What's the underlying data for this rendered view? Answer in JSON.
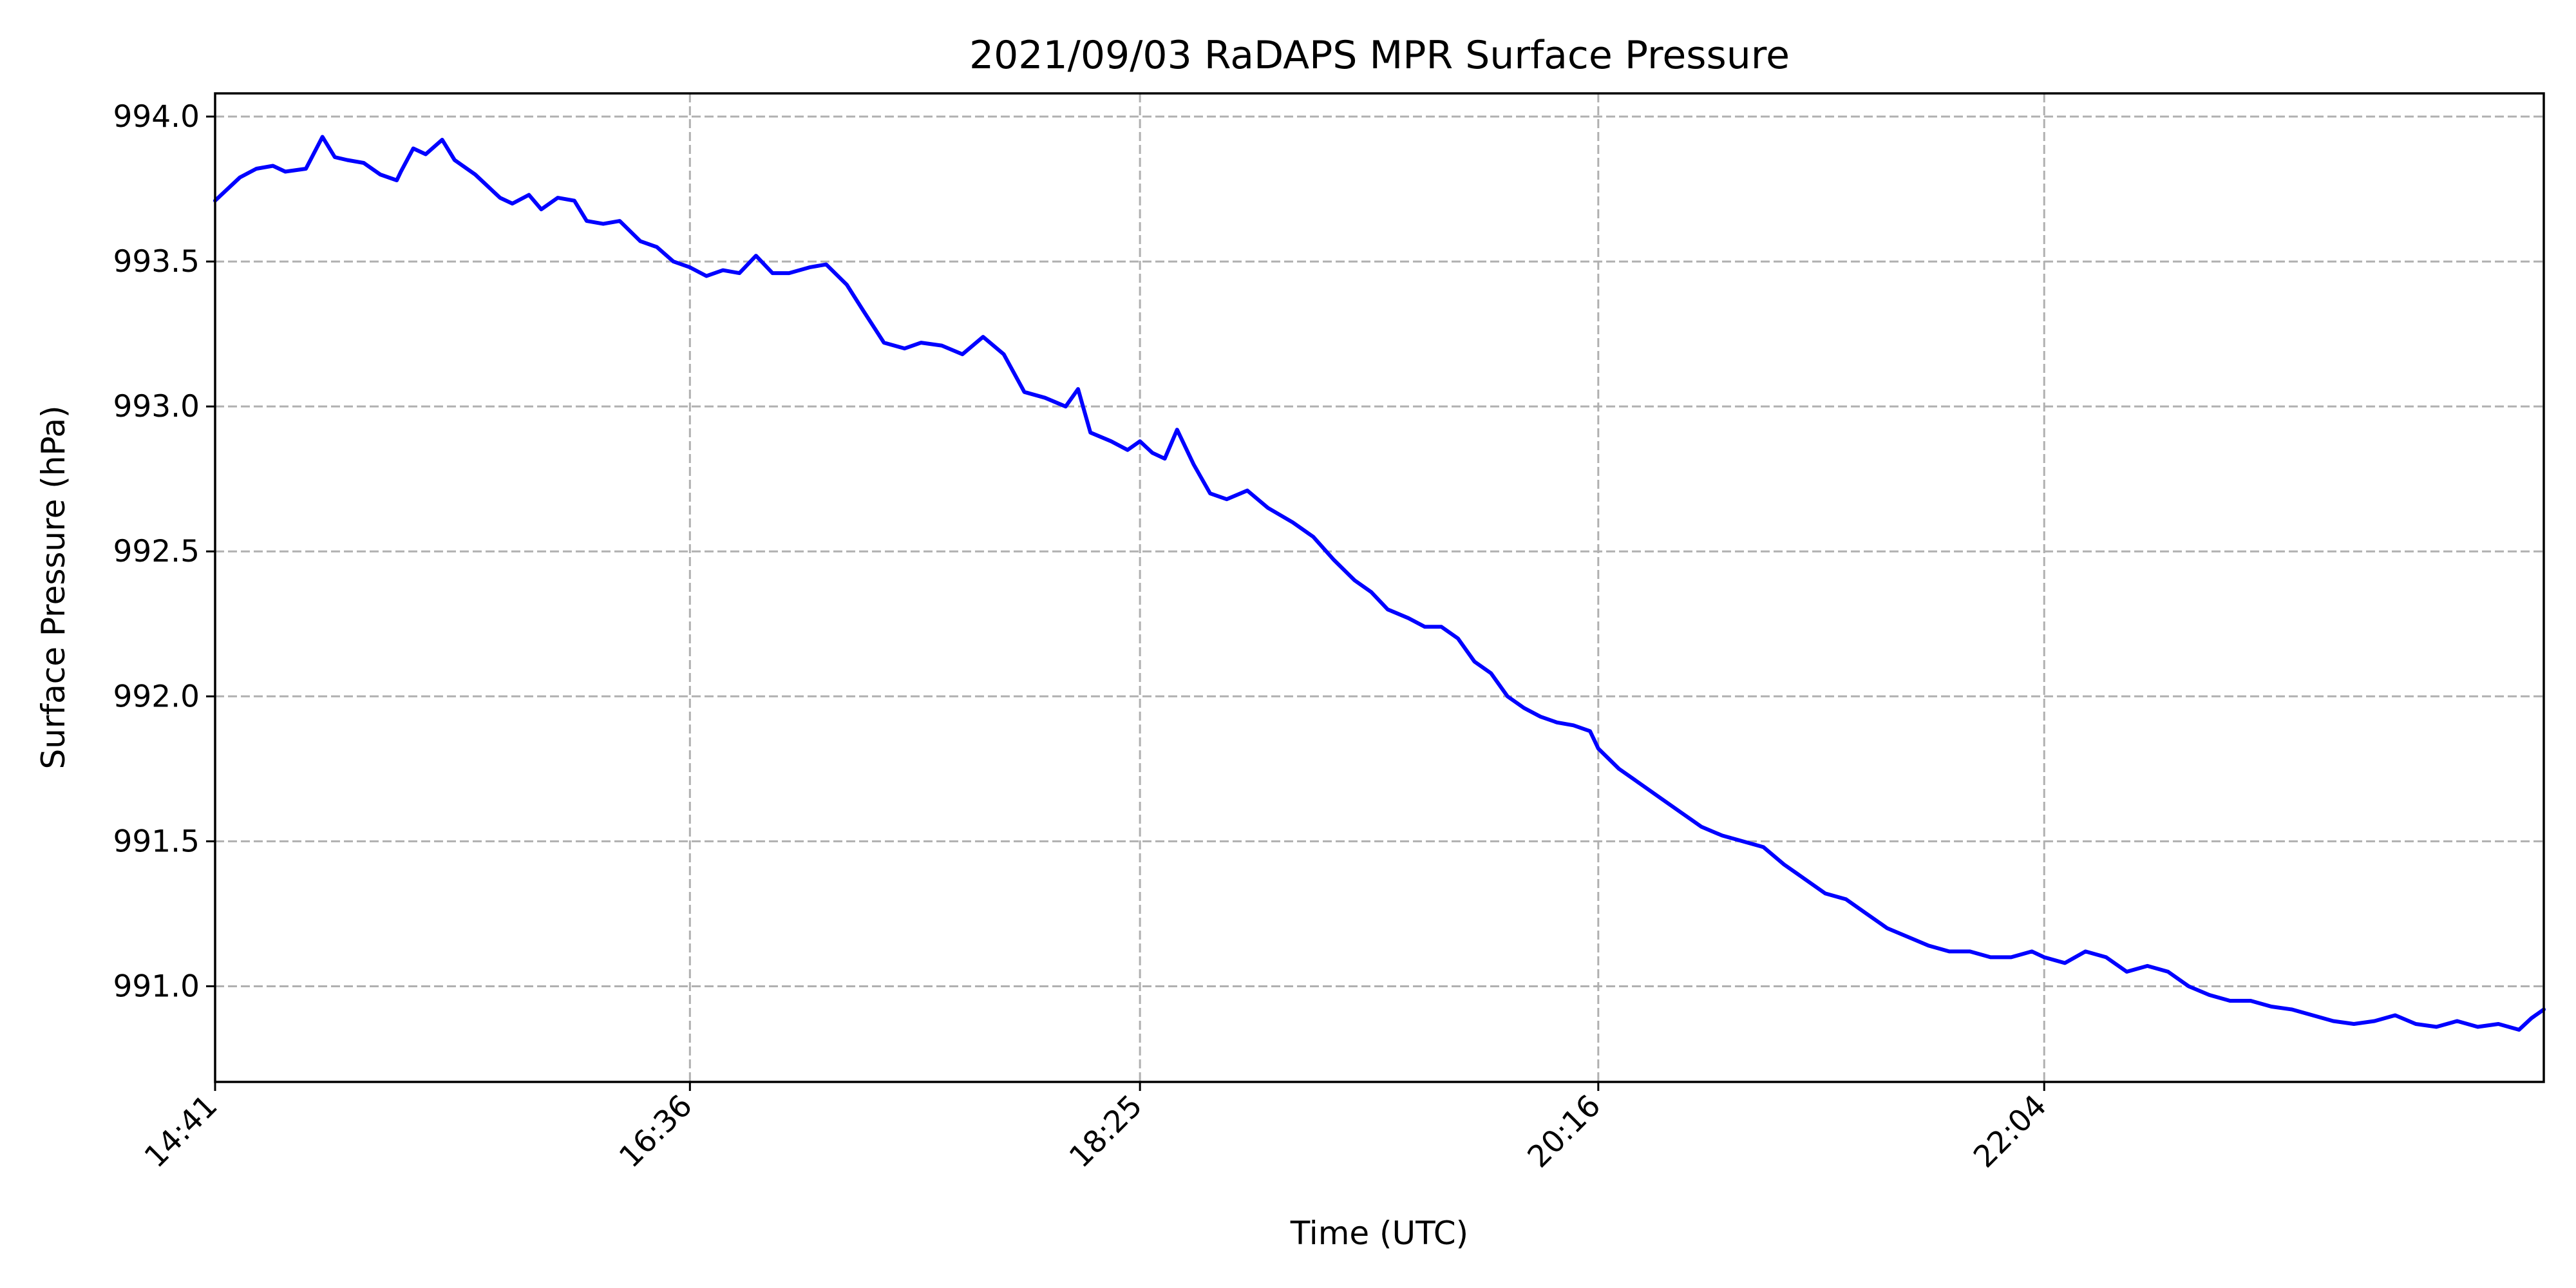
{
  "chart_data": {
    "type": "line",
    "title": "2021/09/03 RaDAPS MPR Surface Pressure",
    "xlabel": "Time (UTC)",
    "ylabel": "Surface Pressure (hPa)",
    "xlim": [
      "14:41",
      "24:05"
    ],
    "ylim": [
      990.67,
      994.08
    ],
    "x_ticks": [
      "14:41",
      "16:36",
      "18:25",
      "20:16",
      "22:04"
    ],
    "y_ticks": [
      991.0,
      991.5,
      992.0,
      992.5,
      993.0,
      993.5,
      994.0
    ],
    "y_tick_labels": [
      "991.0",
      "991.5",
      "992.0",
      "992.5",
      "993.0",
      "993.5",
      "994.0"
    ],
    "grid": true,
    "series": [
      {
        "color": "#0000ff",
        "x": [
          "14:41",
          "14:47",
          "14:51",
          "14:55",
          "14:58",
          "15:03",
          "15:07",
          "15:10",
          "15:13",
          "15:17",
          "15:21",
          "15:25",
          "15:26",
          "15:29",
          "15:32",
          "15:36",
          "15:39",
          "15:44",
          "15:50",
          "15:53",
          "15:57",
          "16:00",
          "16:04",
          "16:08",
          "16:11",
          "16:15",
          "16:19",
          "16:24",
          "16:28",
          "16:32",
          "16:36",
          "16:40",
          "16:44",
          "16:48",
          "16:52",
          "16:56",
          "17:00",
          "17:05",
          "17:09",
          "17:14",
          "17:18",
          "17:23",
          "17:28",
          "17:32",
          "17:37",
          "17:42",
          "17:47",
          "17:52",
          "17:57",
          "18:02",
          "18:07",
          "18:10",
          "18:13",
          "18:18",
          "18:22",
          "18:25",
          "18:28",
          "18:31",
          "18:34",
          "18:38",
          "18:42",
          "18:46",
          "18:51",
          "18:56",
          "19:02",
          "19:07",
          "19:12",
          "19:17",
          "19:21",
          "19:25",
          "19:30",
          "19:34",
          "19:38",
          "19:42",
          "19:46",
          "19:50",
          "19:54",
          "19:58",
          "20:02",
          "20:06",
          "20:10",
          "20:14",
          "20:16",
          "20:21",
          "20:26",
          "20:31",
          "20:36",
          "20:41",
          "20:46",
          "20:51",
          "20:56",
          "21:01",
          "21:06",
          "21:11",
          "21:16",
          "21:21",
          "21:26",
          "21:31",
          "21:36",
          "21:41",
          "21:46",
          "21:51",
          "21:56",
          "22:01",
          "22:04",
          "22:09",
          "22:14",
          "22:19",
          "22:24",
          "22:29",
          "22:34",
          "22:39",
          "22:44",
          "22:49",
          "22:54",
          "22:59",
          "23:04",
          "23:09",
          "23:14",
          "23:19",
          "23:24",
          "23:29",
          "23:34",
          "23:39",
          "23:44",
          "23:49",
          "23:54",
          "23:59",
          "24:02",
          "24:05"
        ],
        "y": [
          993.71,
          993.79,
          993.82,
          993.83,
          993.81,
          993.82,
          993.93,
          993.86,
          993.85,
          993.84,
          993.8,
          993.78,
          993.81,
          993.89,
          993.87,
          993.92,
          993.85,
          993.8,
          993.72,
          993.7,
          993.73,
          993.68,
          993.72,
          993.71,
          993.64,
          993.63,
          993.64,
          993.57,
          993.55,
          993.5,
          993.48,
          993.45,
          993.47,
          993.46,
          993.52,
          993.46,
          993.46,
          993.48,
          993.49,
          993.42,
          993.33,
          993.22,
          993.2,
          993.22,
          993.21,
          993.18,
          993.24,
          993.18,
          993.05,
          993.03,
          993.0,
          993.06,
          992.91,
          992.88,
          992.85,
          992.88,
          992.84,
          992.82,
          992.92,
          992.8,
          992.7,
          992.68,
          992.71,
          992.65,
          992.6,
          992.55,
          992.47,
          992.4,
          992.36,
          992.3,
          992.27,
          992.24,
          992.24,
          992.2,
          992.12,
          992.08,
          992.0,
          991.96,
          991.93,
          991.91,
          991.9,
          991.88,
          991.82,
          991.75,
          991.7,
          991.65,
          991.6,
          991.55,
          991.52,
          991.5,
          991.48,
          991.42,
          991.37,
          991.32,
          991.3,
          991.25,
          991.2,
          991.17,
          991.14,
          991.12,
          991.12,
          991.1,
          991.1,
          991.12,
          991.1,
          991.08,
          991.12,
          991.1,
          991.05,
          991.07,
          991.05,
          991.0,
          990.97,
          990.95,
          990.95,
          990.93,
          990.92,
          990.9,
          990.88,
          990.87,
          990.88,
          990.9,
          990.87,
          990.86,
          990.88,
          990.86,
          990.87,
          990.85,
          990.89,
          990.92
        ]
      }
    ]
  }
}
